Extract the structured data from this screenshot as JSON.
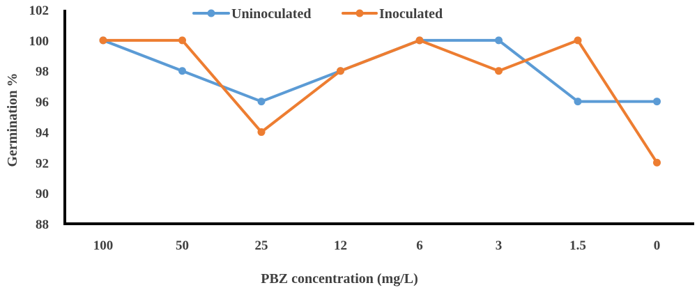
{
  "chart_data": {
    "type": "line",
    "title": "",
    "xlabel": "PBZ concentration (mg/L)",
    "ylabel": "Germination %",
    "categories": [
      "100",
      "50",
      "25",
      "12",
      "6",
      "3",
      "1.5",
      "0"
    ],
    "ylim": [
      88,
      102
    ],
    "yticks": [
      88,
      90,
      92,
      94,
      96,
      98,
      100,
      102
    ],
    "grid": false,
    "legend_position": "top-center",
    "series": [
      {
        "name": "Uninoculated",
        "color": "#5B9BD5",
        "values": [
          100,
          98,
          96,
          98,
          100,
          100,
          96,
          96
        ]
      },
      {
        "name": "Inoculated",
        "color": "#ED7D31",
        "values": [
          100,
          100,
          94,
          98,
          100,
          98,
          100,
          92
        ]
      }
    ]
  }
}
